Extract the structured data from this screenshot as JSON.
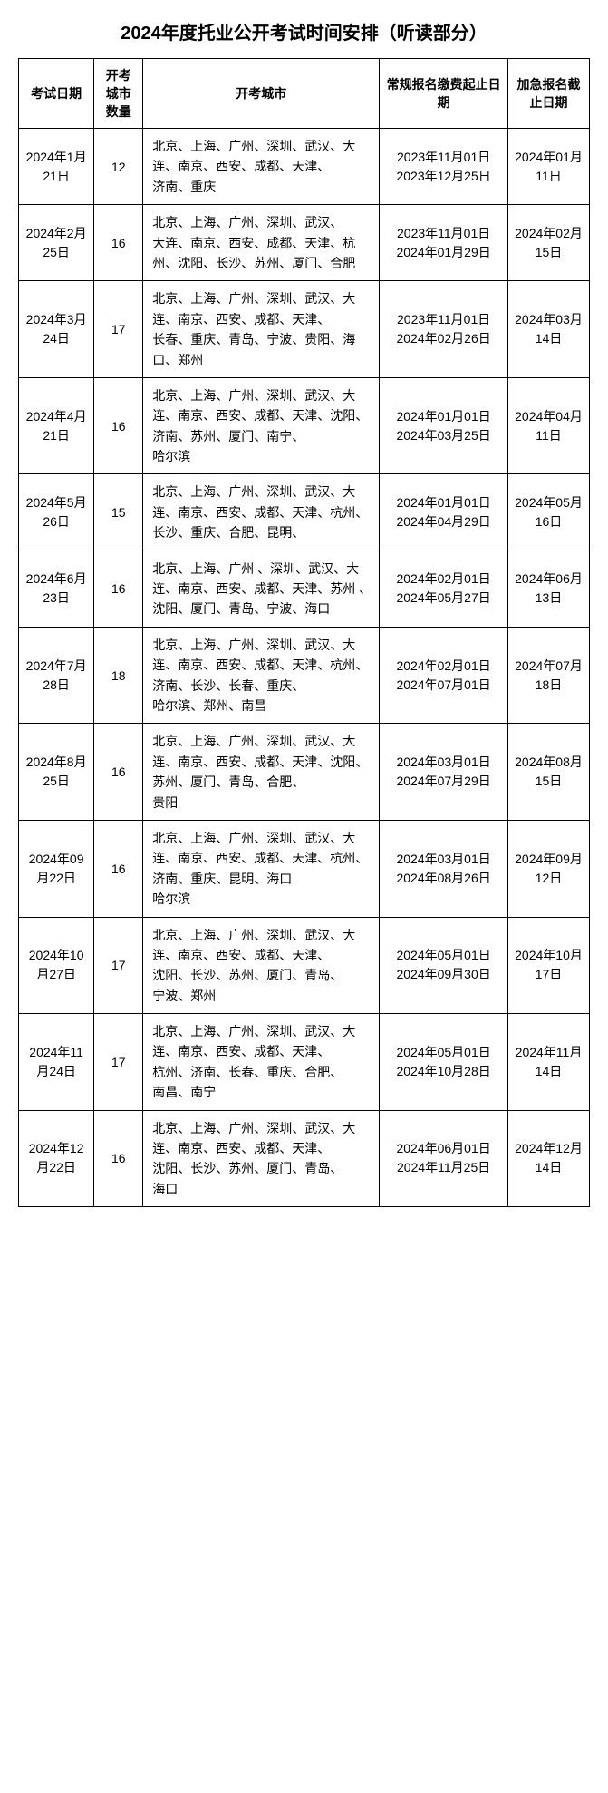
{
  "title": "2024年度托业公开考试时间安排（听读部分）",
  "headers": {
    "exam_date": "考试日期",
    "city_count": "开考城市数量",
    "cities": "开考城市",
    "regular_period": "常规报名缴费起止日期",
    "urgent_deadline": "加急报名截止日期"
  },
  "rows": [
    {
      "exam_date": "2024年1月21日",
      "city_count": "12",
      "cities": "北京、上海、广州、深圳、武汉、大连、南京、西安、成都、天津、\n济南、重庆",
      "regular_period": "2023年11月01日\n2023年12月25日",
      "urgent_deadline": "2024年01月11日"
    },
    {
      "exam_date": "2024年2月25日",
      "city_count": "16",
      "cities": "北京、上海、广州、深圳、武汉、\n大连、南京、西安、成都、天津、杭州、沈阳、长沙、苏州、厦门、合肥",
      "regular_period": "2023年11月01日\n2024年01月29日",
      "urgent_deadline": "2024年02月15日"
    },
    {
      "exam_date": "2024年3月24日",
      "city_count": "17",
      "cities": "北京、上海、广州、深圳、武汉、大连、南京、西安、成都、天津、\n长春、重庆、青岛、宁波、贵阳、海口、郑州",
      "regular_period": "2023年11月01日\n2024年02月26日",
      "urgent_deadline": "2024年03月14日"
    },
    {
      "exam_date": "2024年4月21日",
      "city_count": "16",
      "cities": "北京、上海、广州、深圳、武汉、大连、南京、西安、成都、天津、沈阳、济南、苏州、厦门、南宁、\n哈尔滨",
      "regular_period": "2024年01月01日\n2024年03月25日",
      "urgent_deadline": "2024年04月11日"
    },
    {
      "exam_date": "2024年5月26日",
      "city_count": "15",
      "cities": "北京、上海、广州、深圳、武汉、大连、南京、西安、成都、天津、杭州、长沙、重庆、合肥、昆明、",
      "regular_period": "2024年01月01日\n2024年04月29日",
      "urgent_deadline": "2024年05月16日"
    },
    {
      "exam_date": "2024年6月23日",
      "city_count": "16",
      "cities": "北京、上海、广州 、深圳、武汉、大连、南京、西安、成都、天津、苏州 、沈阳、厦门、青岛、宁波、海口",
      "regular_period": "2024年02月01日\n2024年05月27日",
      "urgent_deadline": "2024年06月13日"
    },
    {
      "exam_date": "2024年7月28日",
      "city_count": "18",
      "cities": "北京、上海、广州、深圳、武汉、大连、南京、西安、成都、天津、杭州、济南、长沙、长春、重庆、\n哈尔滨、郑州、南昌",
      "regular_period": "2024年02月01日\n2024年07月01日",
      "urgent_deadline": "2024年07月18日"
    },
    {
      "exam_date": "2024年8月25日",
      "city_count": "16",
      "cities": "北京、上海、广州、深圳、武汉、大连、南京、西安、成都、天津、沈阳、苏州、厦门、青岛、合肥、\n贵阳",
      "regular_period": "2024年03月01日\n2024年07月29日",
      "urgent_deadline": "2024年08月15日"
    },
    {
      "exam_date": "2024年09月22日",
      "city_count": "16",
      "cities": "北京、上海、广州、深圳、武汉、大连、南京、西安、成都、天津、杭州、济南、重庆、昆明、海口\n哈尔滨",
      "regular_period": "2024年03月01日\n2024年08月26日",
      "urgent_deadline": "2024年09月12日"
    },
    {
      "exam_date": "2024年10月27日",
      "city_count": "17",
      "cities": "北京、上海、广州、深圳、武汉、大连、南京、西安、成都、天津、\n沈阳、长沙、苏州、厦门、青岛、\n宁波、郑州",
      "regular_period": "2024年05月01日\n2024年09月30日",
      "urgent_deadline": "2024年10月17日"
    },
    {
      "exam_date": "2024年11月24日",
      "city_count": "17",
      "cities": "北京、上海、广州、深圳、武汉、大连、南京、西安、成都、天津、\n杭州、济南、长春、重庆、合肥、\n南昌、南宁",
      "regular_period": "2024年05月01日\n2024年10月28日",
      "urgent_deadline": "2024年11月14日"
    },
    {
      "exam_date": "2024年12月22日",
      "city_count": "16",
      "cities": "北京、上海、广州、深圳、武汉、大连、南京、西安、成都、天津、\n沈阳、长沙、苏州、厦门、青岛、\n海口",
      "regular_period": "2024年06月01日\n2024年11月25日",
      "urgent_deadline": "2024年12月14日"
    }
  ]
}
